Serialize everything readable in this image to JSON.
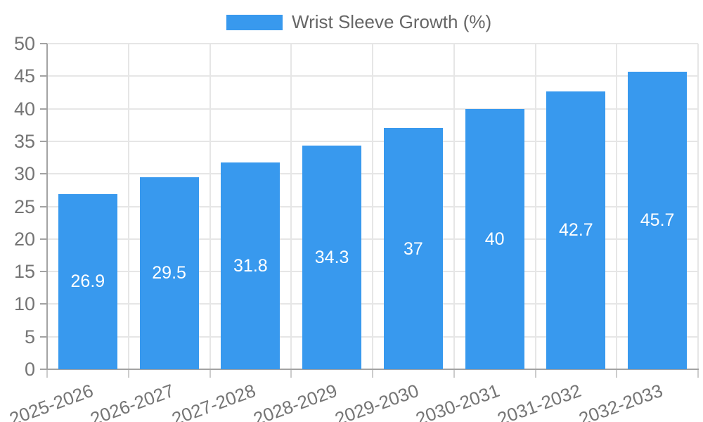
{
  "legend": {
    "label": "Wrist Sleeve Growth (%)"
  },
  "chart_data": {
    "type": "bar",
    "title": "Wrist Sleeve Growth (%)",
    "categories": [
      "2025-2026",
      "2026-2027",
      "2027-2028",
      "2028-2029",
      "2029-2030",
      "2030-2031",
      "2031-2032",
      "2032-2033"
    ],
    "values": [
      26.9,
      29.5,
      31.8,
      34.3,
      37,
      40,
      42.7,
      45.7
    ],
    "value_labels": [
      "26.9",
      "29.5",
      "31.8",
      "34.3",
      "37",
      "40",
      "42.7",
      "45.7"
    ],
    "xlabel": "",
    "ylabel": "",
    "ylim": [
      0,
      50
    ],
    "ytick_step": 5,
    "ytick_labels": [
      "0",
      "5",
      "10",
      "15",
      "20",
      "25",
      "30",
      "35",
      "40",
      "45",
      "50"
    ],
    "grid": true,
    "legend_position": "top-center",
    "colors": {
      "bar": "#3899ee",
      "value_label": "#ffffff",
      "gridline": "#e6e6e6",
      "axis": "#a3a3a3",
      "tick_label": "#757575",
      "legend_text": "#666666",
      "background": "#ffffff"
    }
  }
}
